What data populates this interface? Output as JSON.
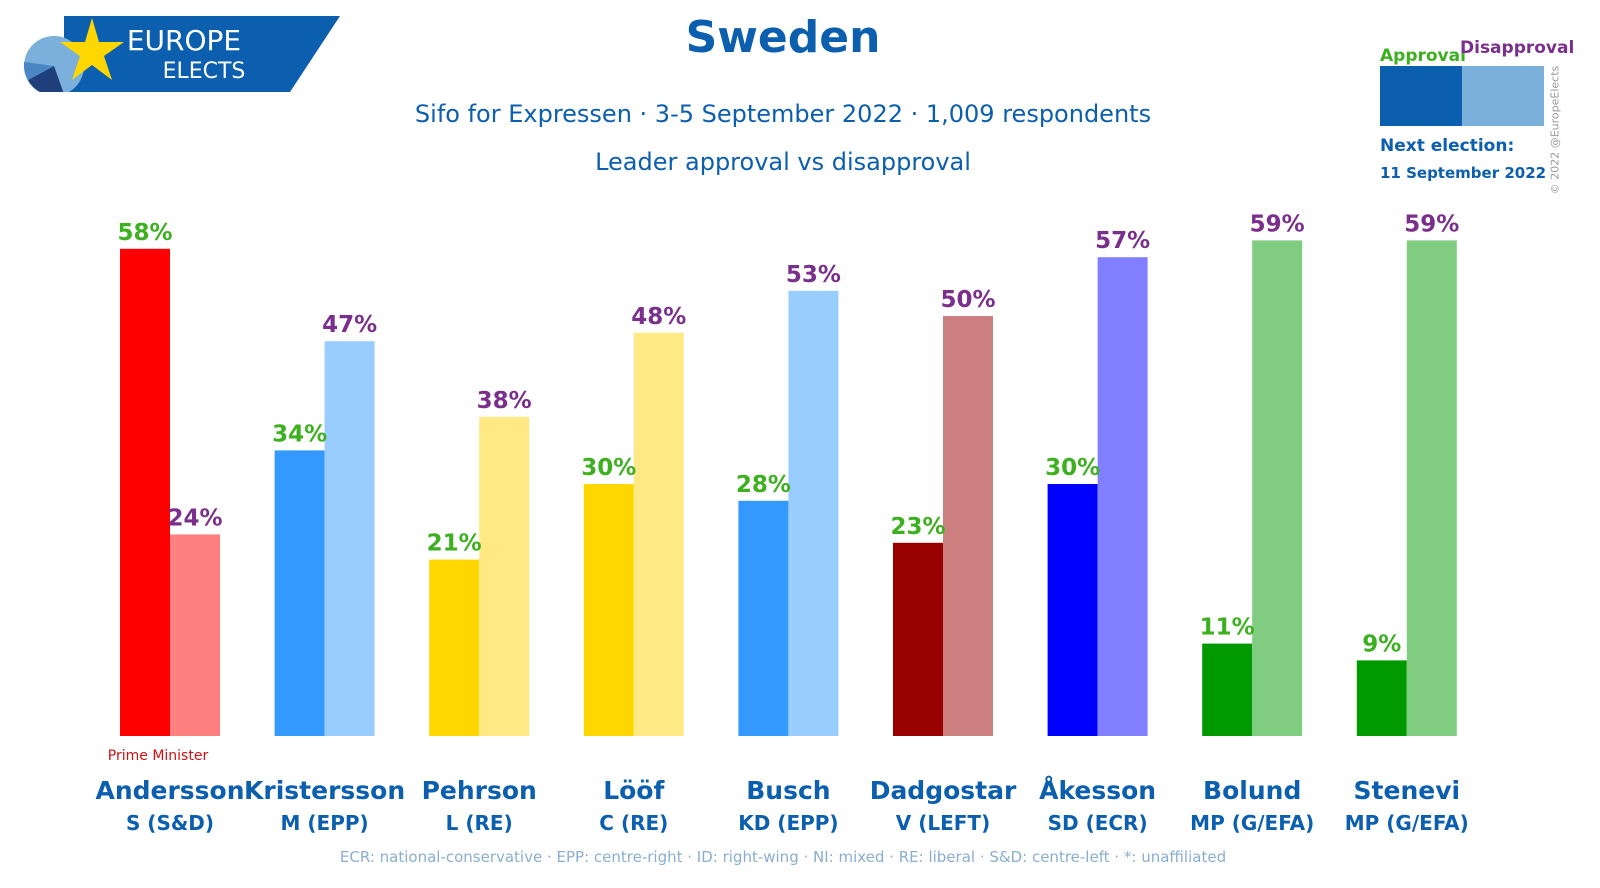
{
  "logo": {
    "line1": "EUROPE",
    "line2": "ELECTS"
  },
  "title": "Sweden",
  "subtitle": "Sifo for Expressen · 3-5 September 2022 · 1,009 respondents",
  "legend": {
    "approval_label": "Approval",
    "disapproval_label": "Disapproval",
    "next_election_label": "Next election:",
    "next_election_date": "11 September 2022"
  },
  "copyright": "© 2022 @EuropeElects",
  "footnote": "ECR: national-conservative · EPP: centre-right · ID: right-wing · NI: mixed · RE: liberal · S&D: centre-left · *: unaffiliated",
  "colors": {
    "brand": "#0b5fae",
    "approval_text": "#3cb01f",
    "disapproval_text": "#7b2f8c",
    "legend_approval": "#0b5fae",
    "legend_disapproval": "#7ab0da",
    "prime_minister_text": "#d01010"
  },
  "chart_data": {
    "type": "bar",
    "title": "Leader approval vs disapproval",
    "ylim": [
      0,
      60
    ],
    "grid": false,
    "series": [
      {
        "name": "Approval",
        "values": [
          58,
          34,
          21,
          30,
          28,
          23,
          30,
          11,
          9
        ]
      },
      {
        "name": "Disapproval",
        "values": [
          24,
          47,
          38,
          48,
          53,
          50,
          57,
          59,
          59
        ]
      }
    ],
    "leaders": [
      {
        "name": "Andersson",
        "party": "S (S&D)",
        "note": "Prime Minister",
        "approval_color": "#ff0000",
        "disapproval_color": "#ff8080"
      },
      {
        "name": "Kristersson",
        "party": "M (EPP)",
        "note": "",
        "approval_color": "#3399ff",
        "disapproval_color": "#99ccff"
      },
      {
        "name": "Pehrson",
        "party": "L (RE)",
        "note": "",
        "approval_color": "#ffd700",
        "disapproval_color": "#ffe985"
      },
      {
        "name": "Lööf",
        "party": "C (RE)",
        "note": "",
        "approval_color": "#ffd700",
        "disapproval_color": "#ffe985"
      },
      {
        "name": "Busch",
        "party": "KD (EPP)",
        "note": "",
        "approval_color": "#3399ff",
        "disapproval_color": "#99ccff"
      },
      {
        "name": "Dadgostar",
        "party": "V (LEFT)",
        "note": "",
        "approval_color": "#990000",
        "disapproval_color": "#cc7f7f"
      },
      {
        "name": "Åkesson",
        "party": "SD (ECR)",
        "note": "",
        "approval_color": "#0000ff",
        "disapproval_color": "#7f7fff"
      },
      {
        "name": "Bolund",
        "party": "MP (G/EFA)",
        "note": "",
        "approval_color": "#009900",
        "disapproval_color": "#80cc80"
      },
      {
        "name": "Stenevi",
        "party": "MP (G/EFA)",
        "note": "",
        "approval_color": "#009900",
        "disapproval_color": "#80cc80"
      }
    ]
  }
}
